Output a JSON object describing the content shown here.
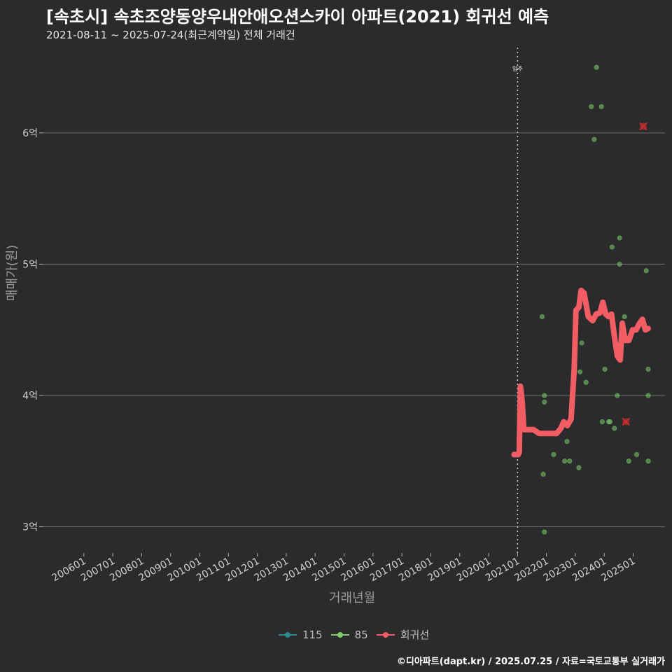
{
  "header": {
    "title": "[속초시] 속초조양동양우내안애오션스카이 아파트(2021) 회귀선 예측",
    "subtitle": "2021-08-11 ~ 2025-07-24(최근계약일) 전체 거래건"
  },
  "footer": {
    "credit": "©디아파트(dapt.kr) / 2025.07.25 / 자료=국토교통부 실거래가"
  },
  "colors": {
    "background": "#2b2b2d",
    "grid": "#6e6e6e",
    "series_115": "#2e8b8b",
    "series_85": "#7ccf6a",
    "regression": "#f25d63",
    "marker": "#cc2d2d"
  },
  "chart_data": {
    "type": "scatter",
    "xlabel": "거래년월",
    "ylabel": "매매가(원)",
    "x_ticks": [
      "200601",
      "200701",
      "200801",
      "200901",
      "201001",
      "201101",
      "201201",
      "201301",
      "201401",
      "201501",
      "201601",
      "201701",
      "201801",
      "201901",
      "202001",
      "202101",
      "202201",
      "202301",
      "202401",
      "202501"
    ],
    "y_ticks": [
      {
        "value": 3,
        "label": "3억"
      },
      {
        "value": 4,
        "label": "4억"
      },
      {
        "value": 5,
        "label": "5억"
      },
      {
        "value": 6,
        "label": "6억"
      }
    ],
    "ylim": [
      2.8,
      6.65
    ],
    "xlim": [
      2004.6,
      2026.1
    ],
    "annotation": {
      "label": "입주",
      "x": 2021.0
    },
    "legend": [
      {
        "name": "115",
        "color": "#2e8b8b"
      },
      {
        "name": "85",
        "color": "#7ccf6a"
      },
      {
        "name": "회귀선",
        "color": "#f25d63"
      }
    ],
    "series": [
      {
        "name": "115",
        "points": []
      },
      {
        "name": "85",
        "points": [
          [
            2021.85,
            4.6
          ],
          [
            2021.89,
            3.4
          ],
          [
            2021.93,
            2.96
          ],
          [
            2021.93,
            3.95
          ],
          [
            2021.93,
            4.0
          ],
          [
            2022.25,
            3.55
          ],
          [
            2022.63,
            3.5
          ],
          [
            2022.71,
            3.65
          ],
          [
            2022.8,
            3.5
          ],
          [
            2023.12,
            3.45
          ],
          [
            2023.16,
            4.18
          ],
          [
            2023.22,
            4.4
          ],
          [
            2023.37,
            4.1
          ],
          [
            2023.55,
            6.2
          ],
          [
            2023.65,
            5.95
          ],
          [
            2023.73,
            6.5
          ],
          [
            2023.9,
            6.2
          ],
          [
            2023.93,
            3.8
          ],
          [
            2024.02,
            4.2
          ],
          [
            2024.15,
            3.8
          ],
          [
            2024.2,
            3.8
          ],
          [
            2024.27,
            5.13
          ],
          [
            2024.35,
            3.75
          ],
          [
            2024.45,
            4.0
          ],
          [
            2024.53,
            5.0
          ],
          [
            2024.53,
            5.2
          ],
          [
            2024.7,
            4.6
          ],
          [
            2024.85,
            3.5
          ],
          [
            2025.12,
            3.55
          ],
          [
            2025.45,
            4.95
          ],
          [
            2025.52,
            4.0
          ],
          [
            2025.52,
            4.2
          ],
          [
            2025.52,
            3.5
          ]
        ]
      },
      {
        "name": "회귀선",
        "points": [
          [
            2020.88,
            3.55
          ],
          [
            2020.95,
            3.55
          ],
          [
            2021.02,
            3.55
          ],
          [
            2021.06,
            3.57
          ],
          [
            2021.1,
            4.07
          ],
          [
            2021.16,
            3.95
          ],
          [
            2021.22,
            3.74
          ],
          [
            2021.35,
            3.74
          ],
          [
            2021.55,
            3.74
          ],
          [
            2021.75,
            3.71
          ],
          [
            2021.95,
            3.71
          ],
          [
            2022.15,
            3.71
          ],
          [
            2022.35,
            3.71
          ],
          [
            2022.5,
            3.75
          ],
          [
            2022.6,
            3.8
          ],
          [
            2022.72,
            3.77
          ],
          [
            2022.85,
            3.82
          ],
          [
            2022.96,
            4.2
          ],
          [
            2023.02,
            4.65
          ],
          [
            2023.12,
            4.67
          ],
          [
            2023.2,
            4.8
          ],
          [
            2023.3,
            4.78
          ],
          [
            2023.45,
            4.6
          ],
          [
            2023.6,
            4.57
          ],
          [
            2023.72,
            4.62
          ],
          [
            2023.85,
            4.63
          ],
          [
            2023.95,
            4.71
          ],
          [
            2024.05,
            4.62
          ],
          [
            2024.15,
            4.6
          ],
          [
            2024.25,
            4.62
          ],
          [
            2024.35,
            4.45
          ],
          [
            2024.45,
            4.3
          ],
          [
            2024.55,
            4.27
          ],
          [
            2024.62,
            4.55
          ],
          [
            2024.72,
            4.42
          ],
          [
            2024.85,
            4.42
          ],
          [
            2024.98,
            4.5
          ],
          [
            2025.1,
            4.5
          ],
          [
            2025.22,
            4.55
          ],
          [
            2025.32,
            4.58
          ],
          [
            2025.42,
            4.5
          ],
          [
            2025.52,
            4.51
          ]
        ]
      }
    ],
    "x_markers": [
      [
        2025.35,
        6.05
      ],
      [
        2024.75,
        3.8
      ]
    ]
  }
}
